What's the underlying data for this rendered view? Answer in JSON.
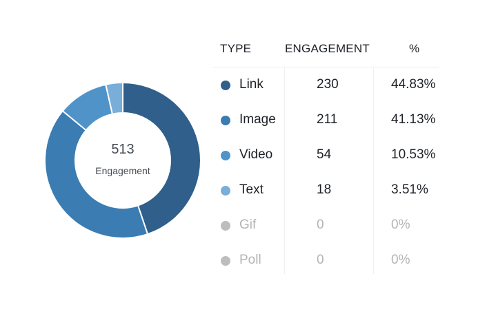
{
  "chart_data": {
    "type": "pie",
    "center": {
      "value": "513",
      "label": "Engagement"
    },
    "headers": {
      "type": "TYPE",
      "engagement": "ENGAGEMENT",
      "pct": "%"
    },
    "rows": [
      {
        "type": "Link",
        "engagement": 230,
        "pct": "44.83%",
        "color": "#2f5f8a",
        "muted": false
      },
      {
        "type": "Image",
        "engagement": 211,
        "pct": "41.13%",
        "color": "#3b7cb2",
        "muted": false
      },
      {
        "type": "Video",
        "engagement": 54,
        "pct": "10.53%",
        "color": "#4f93c9",
        "muted": false
      },
      {
        "type": "Text",
        "engagement": 18,
        "pct": "3.51%",
        "color": "#79aed8",
        "muted": false
      },
      {
        "type": "Gif",
        "engagement": 0,
        "pct": "0%",
        "color": "#bdbdbd",
        "muted": true
      },
      {
        "type": "Poll",
        "engagement": 0,
        "pct": "0%",
        "color": "#bdbdbd",
        "muted": true
      }
    ]
  }
}
